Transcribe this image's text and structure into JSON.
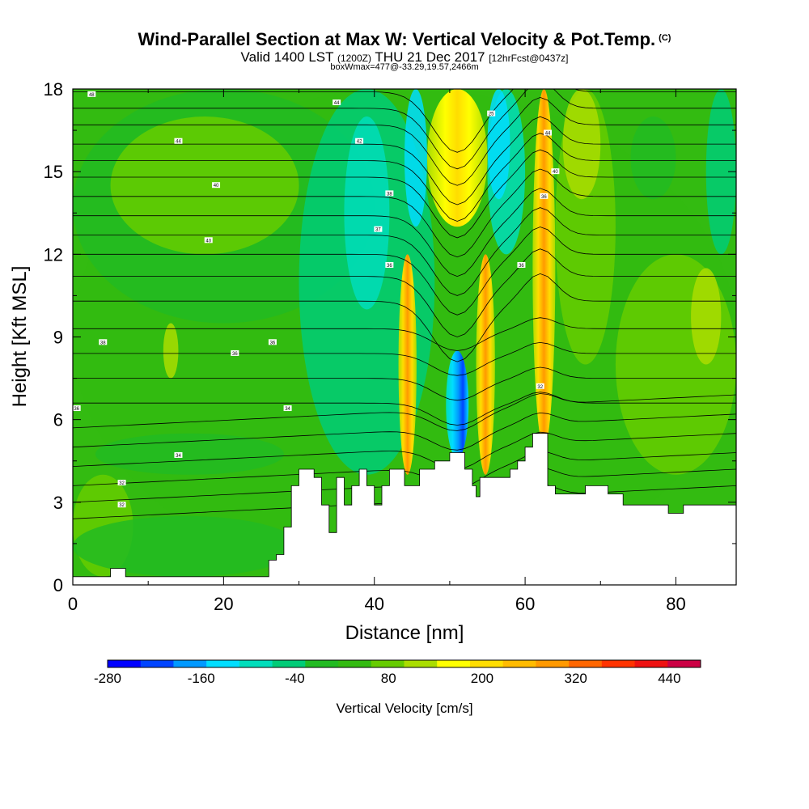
{
  "chart_data": {
    "type": "heatmap",
    "title": "Wind-Parallel Section at Max W: Vertical Velocity & Pot.Temp.",
    "title_mark": "(C)",
    "subtitle_main": "Valid 1400 LST",
    "subtitle_utc": "(1200Z)",
    "subtitle_date": "THU 21 Dec 2017",
    "subtitle_fcst": "[12hrFcst@0437z]",
    "subtitle2": "boxWmax=477@-33.29,19.57,2466m",
    "xlabel": "Distance [nm]",
    "ylabel": "Height [Kft MSL]",
    "xlim": [
      0,
      88
    ],
    "ylim": [
      0,
      18
    ],
    "xticks": [
      0,
      20,
      40,
      60,
      80
    ],
    "yticks": [
      0,
      3,
      6,
      9,
      12,
      15,
      18
    ],
    "colorbar": {
      "label": "Vertical Velocity [cm/s]",
      "tick_labels": [
        "-280",
        "-160",
        "-40",
        "80",
        "200",
        "320",
        "440"
      ],
      "tick_values": [
        -280,
        -160,
        -40,
        80,
        200,
        320,
        440
      ],
      "bounds": [
        -280,
        480
      ],
      "colors": [
        "#0000ff",
        "#0044ff",
        "#0099ff",
        "#00ddff",
        "#00ddbb",
        "#00cc77",
        "#22bb22",
        "#33bb11",
        "#66cc00",
        "#aadd00",
        "#ffff00",
        "#ffdd00",
        "#ffbb00",
        "#ff9900",
        "#ff6600",
        "#ff3300",
        "#ee1111",
        "#cc0044"
      ]
    },
    "terrain_top_kft": [
      [
        0,
        0.3
      ],
      [
        5,
        0.3
      ],
      [
        5,
        0.6
      ],
      [
        7,
        0.6
      ],
      [
        7,
        0.3
      ],
      [
        26,
        0.3
      ],
      [
        26,
        0.9
      ],
      [
        27,
        0.9
      ],
      [
        27,
        1.1
      ],
      [
        28,
        1.1
      ],
      [
        28,
        2.1
      ],
      [
        29,
        2.1
      ],
      [
        29,
        3.6
      ],
      [
        30,
        3.6
      ],
      [
        30,
        4.2
      ],
      [
        32,
        4.2
      ],
      [
        32,
        3.9
      ],
      [
        33,
        3.9
      ],
      [
        33,
        2.9
      ],
      [
        34,
        2.9
      ],
      [
        34,
        1.9
      ],
      [
        35,
        1.9
      ],
      [
        35,
        3.9
      ],
      [
        36,
        3.9
      ],
      [
        36,
        2.9
      ],
      [
        37,
        2.9
      ],
      [
        37,
        3.6
      ],
      [
        38,
        3.6
      ],
      [
        38,
        4.2
      ],
      [
        39,
        4.2
      ],
      [
        39,
        3.6
      ],
      [
        40,
        3.6
      ],
      [
        40,
        2.9
      ],
      [
        41,
        2.9
      ],
      [
        41,
        3.6
      ],
      [
        42,
        3.6
      ],
      [
        42,
        4.2
      ],
      [
        44,
        4.2
      ],
      [
        44,
        3.6
      ],
      [
        46,
        3.6
      ],
      [
        46,
        4.2
      ],
      [
        48,
        4.2
      ],
      [
        48,
        4.5
      ],
      [
        50,
        4.5
      ],
      [
        50,
        4.8
      ],
      [
        52,
        4.8
      ],
      [
        52,
        4.2
      ],
      [
        53,
        4.2
      ],
      [
        53,
        3.6
      ],
      [
        53.5,
        3.6
      ],
      [
        53.5,
        3.2
      ],
      [
        54,
        3.2
      ],
      [
        54,
        3.9
      ],
      [
        58,
        3.9
      ],
      [
        58,
        4.2
      ],
      [
        59,
        4.2
      ],
      [
        59,
        4.5
      ],
      [
        60,
        4.5
      ],
      [
        60,
        5.0
      ],
      [
        61,
        5.0
      ],
      [
        61,
        5.5
      ],
      [
        63,
        5.5
      ],
      [
        63,
        3.6
      ],
      [
        64,
        3.6
      ],
      [
        64,
        3.3
      ],
      [
        68,
        3.3
      ],
      [
        68,
        3.6
      ],
      [
        71,
        3.6
      ],
      [
        71,
        3.3
      ],
      [
        73,
        3.3
      ],
      [
        73,
        2.9
      ],
      [
        79,
        2.9
      ],
      [
        79,
        2.6
      ],
      [
        81,
        2.6
      ],
      [
        81,
        2.9
      ],
      [
        88,
        2.9
      ]
    ],
    "w_cells": [
      {
        "x": [
          43.2,
          45.6
        ],
        "z": [
          4,
          12
        ],
        "w": "positive-max"
      },
      {
        "x": [
          49.5,
          52.5
        ],
        "z": [
          4.6,
          8.5
        ],
        "w": "negative-min"
      },
      {
        "x": [
          53.5,
          56
        ],
        "z": [
          4,
          12
        ],
        "w": "positive-max"
      },
      {
        "x": [
          61,
          64
        ],
        "z": [
          5,
          18
        ],
        "w": "positive-max"
      },
      {
        "x": [
          47,
          55
        ],
        "z": [
          13,
          18
        ],
        "w": "positive-upper"
      }
    ],
    "contour_labels": [
      {
        "x": 2.5,
        "z": 17.8,
        "text": "48"
      },
      {
        "x": 35,
        "z": 17.5,
        "text": "44"
      },
      {
        "x": 55.5,
        "z": 17.1,
        "text": "25"
      },
      {
        "x": 63,
        "z": 16.4,
        "text": "44"
      },
      {
        "x": 14,
        "z": 16.1,
        "text": "44"
      },
      {
        "x": 38,
        "z": 16.1,
        "text": "42"
      },
      {
        "x": 64,
        "z": 15.0,
        "text": "40"
      },
      {
        "x": 19,
        "z": 14.5,
        "text": "40"
      },
      {
        "x": 42,
        "z": 14.2,
        "text": "38"
      },
      {
        "x": 62.5,
        "z": 14.1,
        "text": "36"
      },
      {
        "x": 40.5,
        "z": 12.9,
        "text": "37"
      },
      {
        "x": 18,
        "z": 12.5,
        "text": "40"
      },
      {
        "x": 42,
        "z": 11.6,
        "text": "36"
      },
      {
        "x": 59.5,
        "z": 11.6,
        "text": "36"
      },
      {
        "x": 4,
        "z": 8.8,
        "text": "38"
      },
      {
        "x": 26.5,
        "z": 8.8,
        "text": "36"
      },
      {
        "x": 21.5,
        "z": 8.4,
        "text": "36"
      },
      {
        "x": 62,
        "z": 7.2,
        "text": "32"
      },
      {
        "x": 0.5,
        "z": 6.4,
        "text": "36"
      },
      {
        "x": 28.5,
        "z": 6.4,
        "text": "34"
      },
      {
        "x": 14,
        "z": 4.7,
        "text": "34"
      },
      {
        "x": 6.5,
        "z": 3.7,
        "text": "32"
      },
      {
        "x": 6.5,
        "z": 2.9,
        "text": "32"
      }
    ]
  }
}
